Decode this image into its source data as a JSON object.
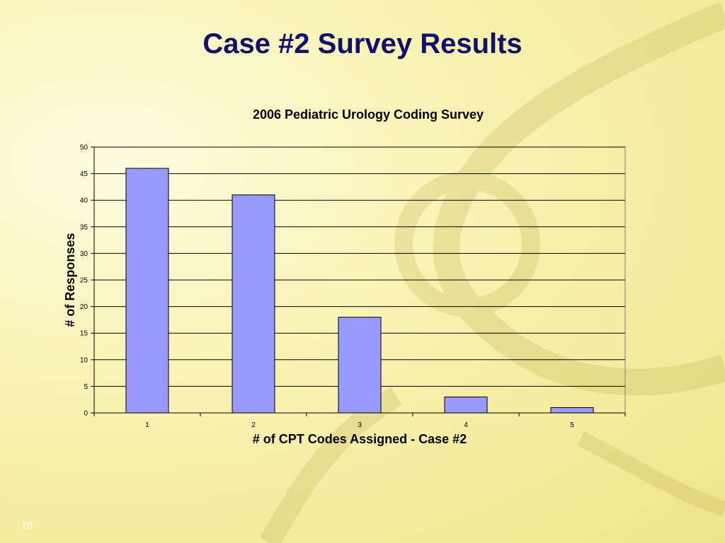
{
  "slide": {
    "title": "Case #2 Survey Results",
    "number": "10"
  },
  "chart_data": {
    "type": "bar",
    "title": "2006 Pediatric Urology Coding Survey",
    "xlabel": "# of CPT Codes Assigned - Case #2",
    "ylabel": "# of Responses",
    "categories": [
      "1",
      "2",
      "3",
      "4",
      "5"
    ],
    "values": [
      46,
      41,
      18,
      3,
      1
    ],
    "ylim": [
      0,
      50
    ],
    "yticks": [
      0,
      5,
      10,
      15,
      20,
      25,
      30,
      35,
      40,
      45,
      50
    ],
    "grid": true,
    "legend": "none",
    "bar_color": "#9999ff",
    "bar_edge_color": "#000000"
  }
}
